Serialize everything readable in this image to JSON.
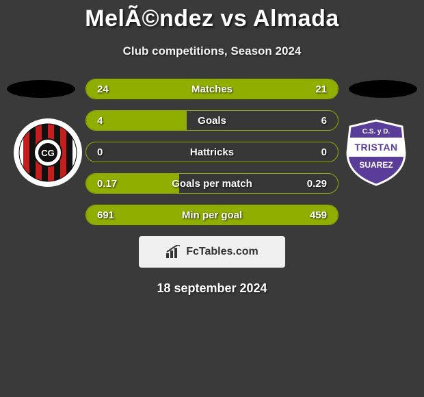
{
  "title": "MelÃ©ndez vs Almada",
  "subtitle": "Club competitions, Season 2024",
  "date": "18 september 2024",
  "watermark": "FcTables.com",
  "colors": {
    "bar_border": "#8fae00",
    "bar_fill": "#8fae00",
    "background": "#3a3a3a",
    "text": "#ffffff",
    "title_shadow": "rgba(0,0,0,0.7)"
  },
  "fonts": {
    "title_size": 34,
    "subtitle_size": 17,
    "bar_label_size": 15,
    "date_size": 18
  },
  "bars": [
    {
      "label": "Matches",
      "left_val": "24",
      "right_val": "21",
      "fill_fraction": 1.0
    },
    {
      "label": "Goals",
      "left_val": "4",
      "right_val": "6",
      "fill_fraction": 0.4
    },
    {
      "label": "Hattricks",
      "left_val": "0",
      "right_val": "0",
      "fill_fraction": 0.0
    },
    {
      "label": "Goals per match",
      "left_val": "0.17",
      "right_val": "0.29",
      "fill_fraction": 0.37
    },
    {
      "label": "Min per goal",
      "left_val": "691",
      "right_val": "459",
      "fill_fraction": 1.0
    }
  ],
  "team_left": {
    "primary_color": "#ffffff",
    "stripe_red": "#c41e1e",
    "stripe_black": "#111111",
    "circle_text": "CG"
  },
  "team_right": {
    "primary_color": "#5a3c99",
    "secondary_color": "#ffffff",
    "top_text": "C.S. y D.",
    "mid_text": "TRISTAN",
    "bottom_text": "SUAREZ"
  }
}
